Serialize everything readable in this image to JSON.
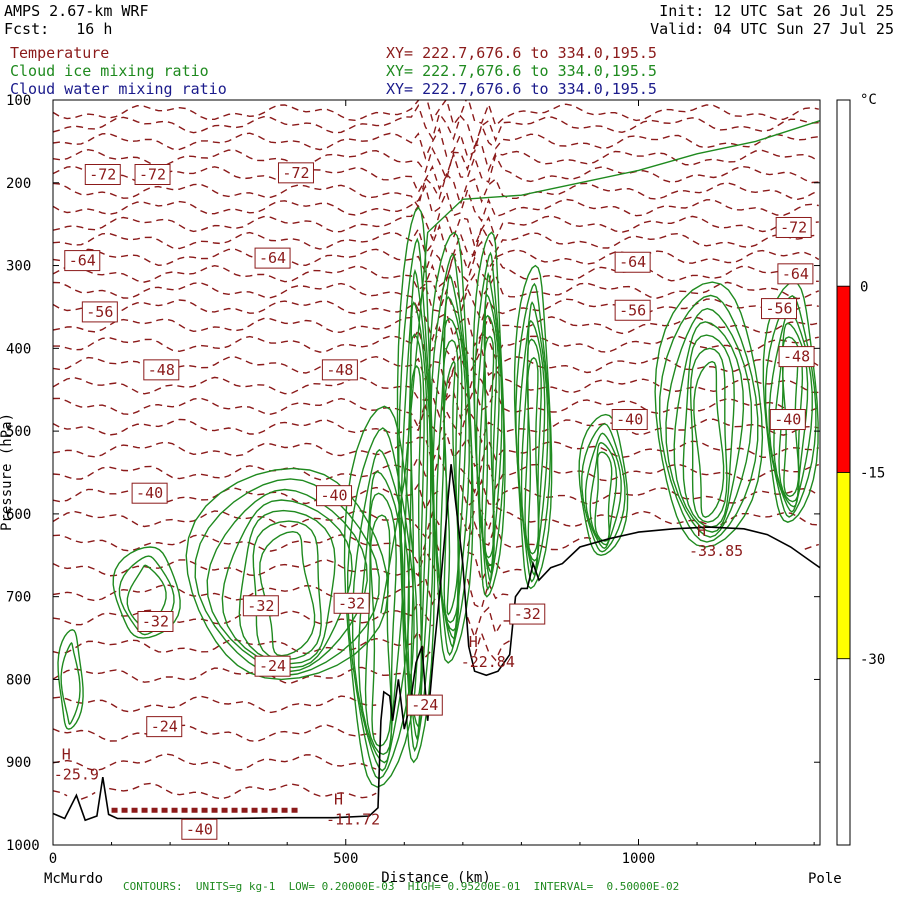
{
  "header": {
    "model": "AMPS 2.67-km WRF",
    "fcst": "Fcst:   16 h",
    "init": "Init: 12 UTC Sat 26 Jul 25",
    "valid": "Valid: 04 UTC Sun 27 Jul 25"
  },
  "fields": [
    {
      "name": "Temperature",
      "xy": "XY= 222.7,676.6 to 334.0,195.5",
      "color": "#8b1a1a"
    },
    {
      "name": "Cloud ice mixing ratio",
      "xy": "XY= 222.7,676.6 to 334.0,195.5",
      "color": "#1f8a1f"
    },
    {
      "name": "Cloud water mixing ratio",
      "xy": "XY= 222.7,676.6 to 334.0,195.5",
      "color": "#1a1a8b"
    }
  ],
  "footer": "CONTOURS:  UNITS=g kg-1  LOW= 0.20000E-03  HIGH= 0.95200E-01  INTERVAL=  0.50000E-02",
  "chart_data": {
    "type": "contour",
    "xlabel": "Distance (km)",
    "ylabel": "Pressure (hPa)",
    "xlim": [
      0,
      1310
    ],
    "ylim": [
      100,
      1000
    ],
    "xticks": [
      {
        "v": 0,
        "label": "0"
      },
      {
        "v": 500,
        "label": "500"
      },
      {
        "v": 1000,
        "label": "1000"
      }
    ],
    "yticks": [
      100,
      200,
      300,
      400,
      500,
      600,
      700,
      800,
      900,
      1000
    ],
    "endpoints": {
      "left": "McMurdo",
      "right": "Pole"
    },
    "colorbar": {
      "unit": "°C",
      "bands": [
        {
          "from": 15,
          "to": 0,
          "color": "#ffffff"
        },
        {
          "from": 0,
          "to": -15,
          "color": "#ff0000"
        },
        {
          "from": -15,
          "to": -30,
          "color": "#ffff00"
        },
        {
          "from": -30,
          "to": -45,
          "color": "#ffffff"
        }
      ],
      "labels": [
        "0",
        "-15",
        "-30"
      ]
    },
    "temperature_labels": [
      {
        "x": 85,
        "p": 190,
        "text": "-72"
      },
      {
        "x": 170,
        "p": 190,
        "text": "-72"
      },
      {
        "x": 415,
        "p": 188,
        "text": "-72"
      },
      {
        "x": 1265,
        "p": 254,
        "text": "-72"
      },
      {
        "x": 50,
        "p": 294,
        "text": "-64"
      },
      {
        "x": 375,
        "p": 291,
        "text": "-64"
      },
      {
        "x": 990,
        "p": 296,
        "text": "-64"
      },
      {
        "x": 1268,
        "p": 310,
        "text": "-64"
      },
      {
        "x": 80,
        "p": 356,
        "text": "-56"
      },
      {
        "x": 990,
        "p": 354,
        "text": "-56"
      },
      {
        "x": 1240,
        "p": 352,
        "text": "-56"
      },
      {
        "x": 185,
        "p": 426,
        "text": "-48"
      },
      {
        "x": 490,
        "p": 426,
        "text": "-48"
      },
      {
        "x": 1270,
        "p": 410,
        "text": "-48"
      },
      {
        "x": 985,
        "p": 486,
        "text": "-40"
      },
      {
        "x": 1255,
        "p": 486,
        "text": "-40"
      },
      {
        "x": 165,
        "p": 575,
        "text": "-40"
      },
      {
        "x": 480,
        "p": 578,
        "text": "-40"
      },
      {
        "x": 355,
        "p": 711,
        "text": "-32"
      },
      {
        "x": 510,
        "p": 708,
        "text": "-32"
      },
      {
        "x": 175,
        "p": 730,
        "text": "-32"
      },
      {
        "x": 810,
        "p": 721,
        "text": "-32"
      },
      {
        "x": 375,
        "p": 784,
        "text": "-24"
      },
      {
        "x": 635,
        "p": 831,
        "text": "-24"
      },
      {
        "x": 190,
        "p": 857,
        "text": "-24"
      },
      {
        "x": 250,
        "p": 981,
        "text": "-40"
      }
    ],
    "extrema": [
      {
        "x": 15,
        "p": 897,
        "label": "H",
        "value": "-25.9"
      },
      {
        "x": 480,
        "p": 951,
        "label": "H",
        "value": "-11.72"
      },
      {
        "x": 710,
        "p": 761,
        "label": "H",
        "value": "-22.84"
      },
      {
        "x": 1100,
        "p": 627,
        "label": "H",
        "value": "-33.85"
      }
    ]
  }
}
